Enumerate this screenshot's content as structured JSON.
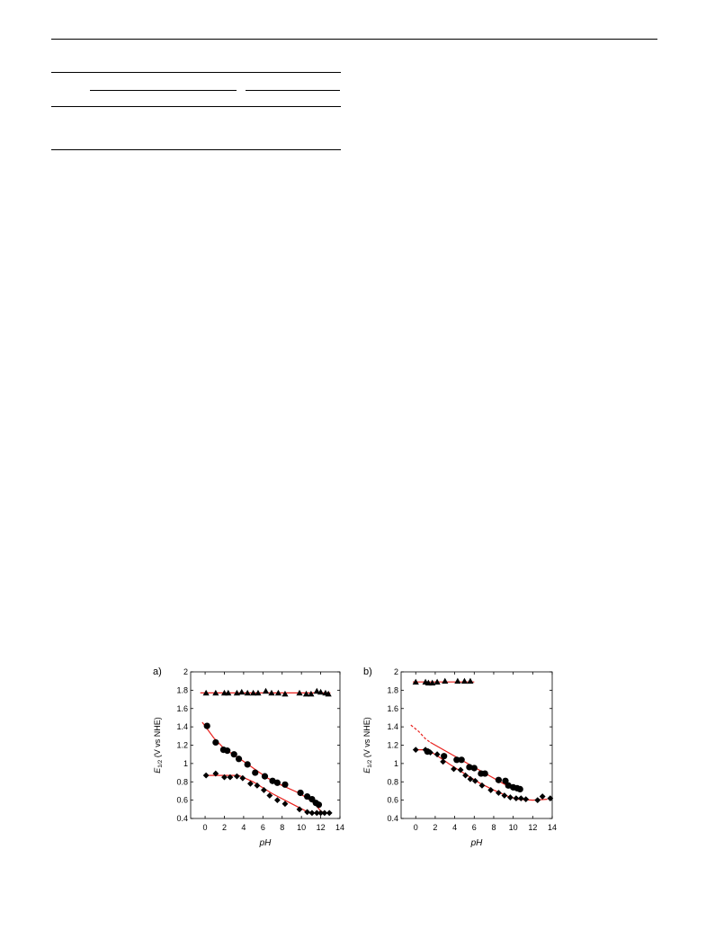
{
  "chart_data": [
    {
      "type": "scatter",
      "panel_label": "a)",
      "xlabel": "pH",
      "ylabel_main": "E",
      "ylabel_sub": "1/2",
      "ylabel_rest": " (V vs NHE)",
      "xlim": [
        -1.5,
        14
      ],
      "ylim": [
        0.4,
        2.0
      ],
      "xticks": [
        "0",
        "2",
        "4",
        "6",
        "8",
        "10",
        "12",
        "14"
      ],
      "yticks": [
        "0.4",
        "0.6",
        "0.8",
        "1",
        "1.2",
        "1.4",
        "1.6",
        "1.8",
        "2"
      ],
      "grid": false,
      "marker_color": "#000000",
      "fit_color": "#e8201c",
      "series": [
        {
          "marker": "triangle",
          "points": [
            [
              0.1,
              1.77
            ],
            [
              1.1,
              1.77
            ],
            [
              2.0,
              1.77
            ],
            [
              2.4,
              1.77
            ],
            [
              3.3,
              1.77
            ],
            [
              3.8,
              1.78
            ],
            [
              4.4,
              1.77
            ],
            [
              5.0,
              1.77
            ],
            [
              5.5,
              1.77
            ],
            [
              6.3,
              1.79
            ],
            [
              6.9,
              1.77
            ],
            [
              7.6,
              1.77
            ],
            [
              8.3,
              1.76
            ],
            [
              9.8,
              1.77
            ],
            [
              10.5,
              1.76
            ],
            [
              11.0,
              1.76
            ],
            [
              11.6,
              1.79
            ],
            [
              12.0,
              1.78
            ],
            [
              12.5,
              1.77
            ],
            [
              12.8,
              1.76
            ]
          ]
        },
        {
          "marker": "circle",
          "points": [
            [
              0.2,
              1.41
            ],
            [
              1.1,
              1.23
            ],
            [
              1.9,
              1.15
            ],
            [
              2.3,
              1.14
            ],
            [
              3.0,
              1.1
            ],
            [
              3.5,
              1.05
            ],
            [
              4.4,
              0.99
            ],
            [
              5.2,
              0.9
            ],
            [
              6.2,
              0.86
            ],
            [
              7.0,
              0.81
            ],
            [
              7.5,
              0.79
            ],
            [
              8.3,
              0.77
            ],
            [
              9.9,
              0.68
            ],
            [
              10.6,
              0.64
            ],
            [
              11.1,
              0.61
            ],
            [
              11.5,
              0.57
            ],
            [
              11.8,
              0.55
            ]
          ]
        },
        {
          "marker": "diamond",
          "points": [
            [
              0.1,
              0.87
            ],
            [
              1.1,
              0.89
            ],
            [
              2.0,
              0.85
            ],
            [
              2.6,
              0.85
            ],
            [
              3.3,
              0.86
            ],
            [
              3.9,
              0.84
            ],
            [
              4.7,
              0.78
            ],
            [
              5.4,
              0.76
            ],
            [
              6.1,
              0.71
            ],
            [
              6.7,
              0.65
            ],
            [
              7.5,
              0.6
            ],
            [
              8.3,
              0.56
            ],
            [
              9.8,
              0.5
            ],
            [
              10.6,
              0.47
            ],
            [
              11.1,
              0.46
            ],
            [
              11.6,
              0.46
            ],
            [
              12.0,
              0.46
            ],
            [
              12.4,
              0.46
            ],
            [
              12.9,
              0.46
            ]
          ]
        }
      ],
      "fits": [
        {
          "style": "solid",
          "points": [
            [
              -0.5,
              1.77
            ],
            [
              13.0,
              1.77
            ]
          ]
        },
        {
          "style": "solid",
          "points": [
            [
              -0.3,
              1.45
            ],
            [
              0.9,
              1.28
            ],
            [
              2.0,
              1.16
            ],
            [
              3.5,
              1.06
            ],
            [
              5.0,
              0.95
            ],
            [
              6.5,
              0.84
            ],
            [
              8.0,
              0.76
            ],
            [
              9.5,
              0.69
            ],
            [
              10.5,
              0.63
            ],
            [
              11.4,
              0.56
            ],
            [
              12.0,
              0.48
            ],
            [
              12.4,
              0.46
            ],
            [
              13.0,
              0.46
            ]
          ]
        },
        {
          "style": "solid",
          "points": [
            [
              0.0,
              0.87
            ],
            [
              3.5,
              0.87
            ],
            [
              5.0,
              0.8
            ],
            [
              7.0,
              0.67
            ],
            [
              9.0,
              0.56
            ],
            [
              10.5,
              0.48
            ],
            [
              11.0,
              0.46
            ],
            [
              13.0,
              0.46
            ]
          ]
        }
      ]
    },
    {
      "type": "scatter",
      "panel_label": "b)",
      "xlabel": "pH",
      "ylabel_main": "E",
      "ylabel_sub": "1/2",
      "ylabel_rest": " (V vs NHE)",
      "xlim": [
        -1.5,
        14
      ],
      "ylim": [
        0.4,
        2.0
      ],
      "xticks": [
        "0",
        "2",
        "4",
        "6",
        "8",
        "10",
        "12",
        "14"
      ],
      "yticks": [
        "0.4",
        "0.6",
        "0.8",
        "1",
        "1.2",
        "1.4",
        "1.6",
        "1.8",
        "2"
      ],
      "grid": false,
      "marker_color": "#000000",
      "fit_color": "#e8201c",
      "series": [
        {
          "marker": "triangle",
          "points": [
            [
              0.0,
              1.89
            ],
            [
              1.0,
              1.89
            ],
            [
              1.3,
              1.88
            ],
            [
              1.7,
              1.88
            ],
            [
              2.2,
              1.89
            ],
            [
              3.0,
              1.9
            ],
            [
              4.3,
              1.9
            ],
            [
              5.0,
              1.9
            ],
            [
              5.6,
              1.9
            ]
          ]
        },
        {
          "marker": "circle",
          "points": [
            [
              1.2,
              1.13
            ],
            [
              2.9,
              1.08
            ],
            [
              4.2,
              1.04
            ],
            [
              4.7,
              1.04
            ],
            [
              5.5,
              0.96
            ],
            [
              6.0,
              0.95
            ],
            [
              6.7,
              0.89
            ],
            [
              7.1,
              0.89
            ],
            [
              8.5,
              0.82
            ],
            [
              9.2,
              0.81
            ],
            [
              9.5,
              0.76
            ],
            [
              10.0,
              0.74
            ],
            [
              10.4,
              0.73
            ],
            [
              10.7,
              0.72
            ]
          ]
        },
        {
          "marker": "diamond",
          "points": [
            [
              0.0,
              1.15
            ],
            [
              1.0,
              1.15
            ],
            [
              1.5,
              1.12
            ],
            [
              2.2,
              1.1
            ],
            [
              2.8,
              1.02
            ],
            [
              3.9,
              0.94
            ],
            [
              4.6,
              0.93
            ],
            [
              5.1,
              0.87
            ],
            [
              5.6,
              0.83
            ],
            [
              6.1,
              0.81
            ],
            [
              6.8,
              0.76
            ],
            [
              7.7,
              0.71
            ],
            [
              8.5,
              0.68
            ],
            [
              9.1,
              0.65
            ],
            [
              9.7,
              0.63
            ],
            [
              10.3,
              0.62
            ],
            [
              10.8,
              0.62
            ],
            [
              11.3,
              0.61
            ],
            [
              12.5,
              0.6
            ],
            [
              13.0,
              0.64
            ],
            [
              13.8,
              0.62
            ]
          ]
        }
      ],
      "fits": [
        {
          "style": "solid",
          "points": [
            [
              -0.3,
              1.89
            ],
            [
              6.0,
              1.89
            ]
          ]
        },
        {
          "style": "dashed",
          "points": [
            [
              -0.5,
              1.42
            ],
            [
              0.3,
              1.35
            ],
            [
              1.0,
              1.27
            ],
            [
              1.5,
              1.23
            ]
          ]
        },
        {
          "style": "solid",
          "points": [
            [
              1.5,
              1.23
            ],
            [
              3.0,
              1.14
            ],
            [
              4.5,
              1.05
            ],
            [
              6.0,
              0.96
            ],
            [
              7.5,
              0.87
            ],
            [
              9.0,
              0.78
            ],
            [
              10.0,
              0.73
            ],
            [
              10.6,
              0.7
            ]
          ]
        },
        {
          "style": "solid",
          "points": [
            [
              -0.2,
              1.15
            ],
            [
              1.0,
              1.15
            ],
            [
              2.0,
              1.1
            ],
            [
              3.5,
              0.99
            ],
            [
              5.0,
              0.89
            ],
            [
              6.5,
              0.79
            ],
            [
              8.0,
              0.71
            ],
            [
              9.5,
              0.64
            ],
            [
              10.5,
              0.61
            ],
            [
              12.0,
              0.6
            ],
            [
              13.5,
              0.61
            ]
          ]
        }
      ]
    }
  ]
}
